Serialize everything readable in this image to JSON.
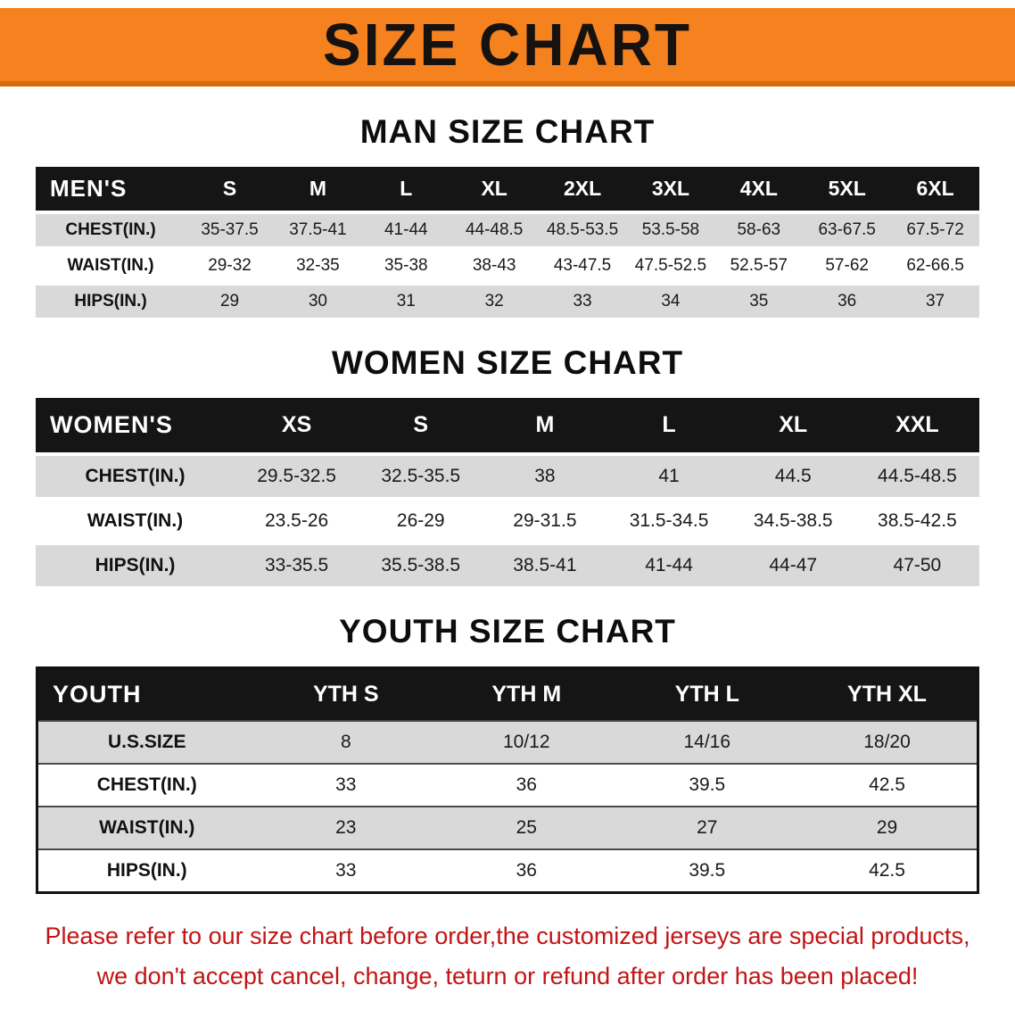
{
  "banner": {
    "title": "SIZE CHART"
  },
  "colors": {
    "banner_bg": "#f5821f",
    "banner_border": "#d96a10",
    "header_row_bg": "#151515",
    "row_shade": "#d9d9d9",
    "footnote_text": "#c21414"
  },
  "sections": [
    {
      "heading": "MAN SIZE CHART",
      "table": {
        "header_label": "MEN'S",
        "columns": [
          "S",
          "M",
          "L",
          "XL",
          "2XL",
          "3XL",
          "4XL",
          "5XL",
          "6XL"
        ],
        "rows": [
          {
            "label": "CHEST(IN.)",
            "values": [
              "35-37.5",
              "37.5-41",
              "41-44",
              "44-48.5",
              "48.5-53.5",
              "53.5-58",
              "58-63",
              "63-67.5",
              "67.5-72"
            ]
          },
          {
            "label": "WAIST(IN.)",
            "values": [
              "29-32",
              "32-35",
              "35-38",
              "38-43",
              "43-47.5",
              "47.5-52.5",
              "52.5-57",
              "57-62",
              "62-66.5"
            ]
          },
          {
            "label": "HIPS(IN.)",
            "values": [
              "29",
              "30",
              "31",
              "32",
              "33",
              "34",
              "35",
              "36",
              "37"
            ]
          }
        ]
      }
    },
    {
      "heading": "WOMEN SIZE CHART",
      "table": {
        "header_label": "WOMEN'S",
        "columns": [
          "XS",
          "S",
          "M",
          "L",
          "XL",
          "XXL"
        ],
        "rows": [
          {
            "label": "CHEST(IN.)",
            "values": [
              "29.5-32.5",
              "32.5-35.5",
              "38",
              "41",
              "44.5",
              "44.5-48.5"
            ]
          },
          {
            "label": "WAIST(IN.)",
            "values": [
              "23.5-26",
              "26-29",
              "29-31.5",
              "31.5-34.5",
              "34.5-38.5",
              "38.5-42.5"
            ]
          },
          {
            "label": "HIPS(IN.)",
            "values": [
              "33-35.5",
              "35.5-38.5",
              "38.5-41",
              "41-44",
              "44-47",
              "47-50"
            ]
          }
        ]
      }
    },
    {
      "heading": "YOUTH SIZE CHART",
      "table": {
        "header_label": "YOUTH",
        "columns": [
          "YTH S",
          "YTH M",
          "YTH L",
          "YTH XL"
        ],
        "rows": [
          {
            "label": "U.S.SIZE",
            "values": [
              "8",
              "10/12",
              "14/16",
              "18/20"
            ]
          },
          {
            "label": "CHEST(IN.)",
            "values": [
              "33",
              "36",
              "39.5",
              "42.5"
            ]
          },
          {
            "label": "WAIST(IN.)",
            "values": [
              "23",
              "25",
              "27",
              "29"
            ]
          },
          {
            "label": "HIPS(IN.)",
            "values": [
              "33",
              "36",
              "39.5",
              "42.5"
            ]
          }
        ]
      }
    }
  ],
  "footnote": {
    "line1": "Please refer to our size chart before order,the customized jerseys are special products,",
    "line2": "we don't accept cancel, change, teturn or refund after order has been placed!"
  }
}
